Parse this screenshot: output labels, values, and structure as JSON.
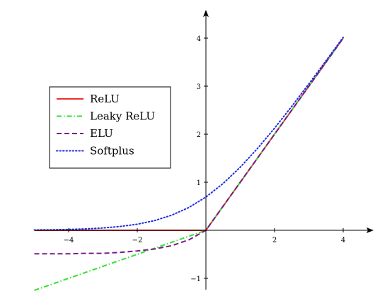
{
  "chart_data": {
    "type": "line",
    "title": "",
    "xlabel": "",
    "ylabel": "",
    "xlim": [
      -5,
      4.5
    ],
    "ylim": [
      -1.25,
      4.5
    ],
    "x_ticks": [
      -4,
      -2,
      2,
      4
    ],
    "y_ticks": [
      -1,
      1,
      2,
      3,
      4
    ],
    "x_tick_labels": [
      "−4",
      "−2",
      "2",
      "4"
    ],
    "y_tick_labels": [
      "−1",
      "1",
      "2",
      "3",
      "4"
    ],
    "grid": false,
    "legend_position": "upper-left",
    "axes_style": "centered-arrows",
    "series": [
      {
        "name": "ReLU",
        "color": "#e8312a",
        "line_style": "solid",
        "x": [
          -5,
          -4,
          -3,
          -2,
          -1,
          0,
          1,
          2,
          3,
          4
        ],
        "y": [
          0,
          0,
          0,
          0,
          0,
          0,
          1,
          2,
          3,
          4
        ]
      },
      {
        "name": "Leaky ReLU",
        "color": "#33e033",
        "line_style": "dash-dot",
        "x": [
          -5,
          -4,
          -3,
          -2,
          -1,
          0,
          1,
          2,
          3,
          4
        ],
        "y": [
          -1.25,
          -1.0,
          -0.75,
          -0.5,
          -0.25,
          0,
          1,
          2,
          3,
          4
        ]
      },
      {
        "name": "ELU",
        "color": "#7a1a8a",
        "line_style": "dashed",
        "x": [
          -5,
          -4.5,
          -4,
          -3.5,
          -3,
          -2.5,
          -2,
          -1.5,
          -1,
          -0.5,
          0,
          1,
          2,
          3,
          4
        ],
        "y": [
          -0.49,
          -0.49,
          -0.49,
          -0.48,
          -0.48,
          -0.46,
          -0.43,
          -0.39,
          -0.32,
          -0.2,
          0,
          1,
          2,
          3,
          4
        ]
      },
      {
        "name": "Softplus",
        "color": "#1f2ee0",
        "line_style": "dotted",
        "x": [
          -5,
          -4.5,
          -4,
          -3.5,
          -3,
          -2.5,
          -2,
          -1.5,
          -1,
          -0.5,
          0,
          0.5,
          1,
          1.5,
          2,
          2.5,
          3,
          3.5,
          4
        ],
        "y": [
          0.007,
          0.011,
          0.018,
          0.03,
          0.049,
          0.079,
          0.127,
          0.201,
          0.313,
          0.474,
          0.693,
          0.974,
          1.313,
          1.701,
          2.127,
          2.579,
          3.049,
          3.53,
          4.018
        ]
      }
    ]
  }
}
